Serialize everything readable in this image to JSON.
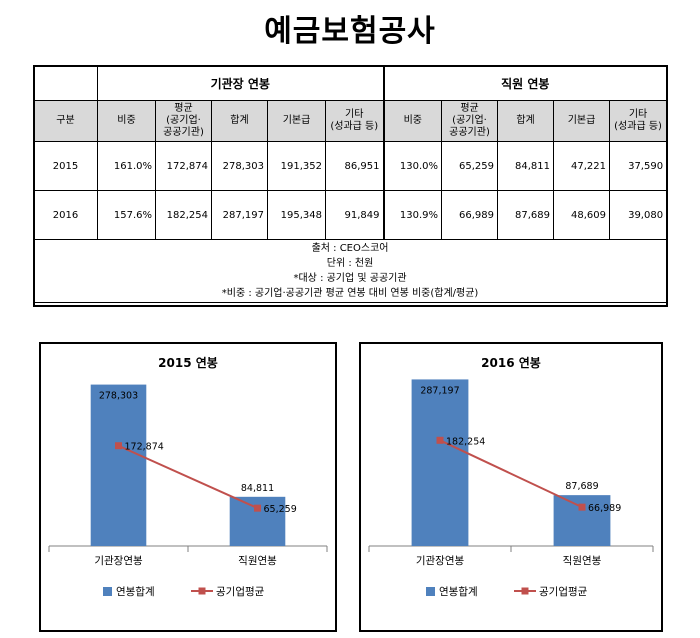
{
  "page_title": "예금보험공사",
  "table": {
    "group_ceo": "기관장 연봉",
    "group_staff": "직원 연봉",
    "headers": {
      "category": "구분",
      "ratio": "비중",
      "avg_line1": "평균",
      "avg_line2": "(공기업·",
      "avg_line3": "공공기관)",
      "total": "합계",
      "base": "기본급",
      "other_line1": "기타",
      "other_line2": "(성과급 등)"
    },
    "rows": [
      {
        "year": "2015",
        "ceo_ratio": "161.0%",
        "ceo_avg": "172,874",
        "ceo_total": "278,303",
        "ceo_base": "191,352",
        "ceo_other": "86,951",
        "staff_ratio": "130.0%",
        "staff_avg": "65,259",
        "staff_total": "84,811",
        "staff_base": "47,221",
        "staff_other": "37,590"
      },
      {
        "year": "2016",
        "ceo_ratio": "157.6%",
        "ceo_avg": "182,254",
        "ceo_total": "287,197",
        "ceo_base": "195,348",
        "ceo_other": "91,849",
        "staff_ratio": "130.9%",
        "staff_avg": "66,989",
        "staff_total": "87,689",
        "staff_base": "48,609",
        "staff_other": "39,080"
      }
    ],
    "notes": [
      "출처 : CEO스코어",
      "단위 : 천원",
      "*대상 : 공기업 및 공공기관",
      "*비중 : 공기업·공공기관 평균 연봉 대비 연봉 비중(합계/평균)"
    ]
  },
  "chart_data": [
    {
      "type": "bar",
      "title": "2015 연봉",
      "categories": [
        "기관장연봉",
        "직원연봉"
      ],
      "series": [
        {
          "name": "연봉합계",
          "kind": "bar",
          "color": "#4f81bd",
          "values": [
            278303,
            84811
          ],
          "labels": [
            "278,303",
            "84,811"
          ]
        },
        {
          "name": "공기업평균",
          "kind": "line",
          "color": "#c0504d",
          "values": [
            172874,
            65259
          ],
          "labels": [
            "172,874",
            "65,259"
          ]
        }
      ],
      "ylim": [
        0,
        300000
      ]
    },
    {
      "type": "bar",
      "title": "2016 연봉",
      "categories": [
        "기관장연봉",
        "직원연봉"
      ],
      "series": [
        {
          "name": "연봉합계",
          "kind": "bar",
          "color": "#4f81bd",
          "values": [
            287197,
            87689
          ],
          "labels": [
            "287,197",
            "87,689"
          ]
        },
        {
          "name": "공기업평균",
          "kind": "line",
          "color": "#c0504d",
          "values": [
            182254,
            66989
          ],
          "labels": [
            "182,254",
            "66,989"
          ]
        }
      ],
      "ylim": [
        0,
        300000
      ]
    }
  ]
}
